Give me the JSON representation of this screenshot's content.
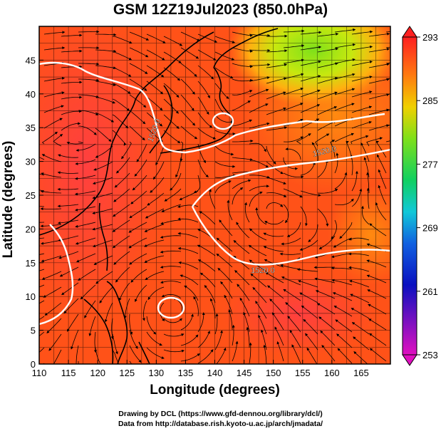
{
  "title": "GSM 12Z19Jul2023 (850.0hPa)",
  "axes": {
    "xlabel": "Longitude (degrees)",
    "ylabel": "Latitude  (degrees)",
    "xticks": [
      "110",
      "115",
      "120",
      "125",
      "130",
      "135",
      "140",
      "145",
      "150",
      "155",
      "160",
      "165"
    ],
    "yticks": [
      "0",
      "5",
      "10",
      "15",
      "20",
      "25",
      "30",
      "35",
      "40",
      "45"
    ],
    "xlim": [
      110,
      170
    ],
    "ylim": [
      0,
      50
    ]
  },
  "colorbar": {
    "labels": [
      "293",
      "285",
      "277",
      "269",
      "261",
      "253"
    ],
    "range": [
      253,
      293
    ]
  },
  "contours": {
    "labels": [
      "1520.0",
      "1520.0",
      "1520.0"
    ]
  },
  "credits": {
    "line1": "Drawing by DCL (https://www.gfd-dennou.org/library/dcl/)",
    "line2": "Data from http://database.rish.kyoto-u.ac.jp/arch/jmadata/"
  },
  "colors": {
    "warm": "#ff3a1a",
    "mid": "#ff7a10",
    "cool": "#44d810",
    "contour": "#ffffff",
    "coast": "#000000"
  }
}
